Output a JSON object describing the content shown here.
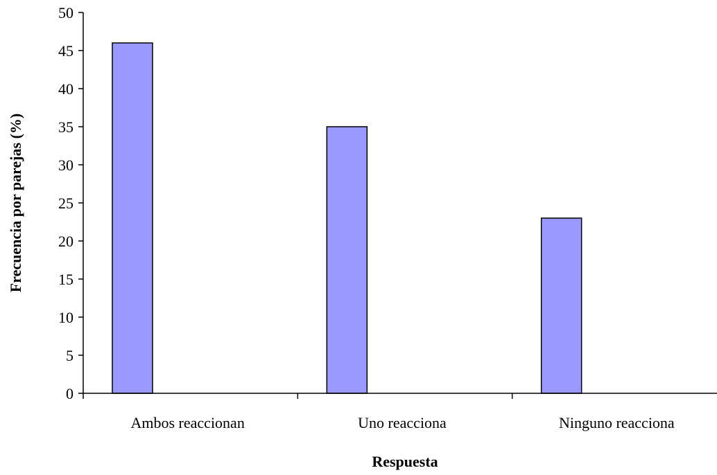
{
  "chart_data": {
    "type": "bar",
    "categories": [
      "Ambos reaccionan",
      "Uno reacciona",
      "Ninguno reacciona"
    ],
    "values": [
      46,
      35,
      23
    ],
    "xlabel": "Respuesta",
    "ylabel": "Frecuencia por parejas (%)",
    "ylim": [
      0,
      50
    ],
    "ytick_step": 5,
    "yticks": [
      "0",
      "5",
      "10",
      "15",
      "20",
      "25",
      "30",
      "35",
      "40",
      "45",
      "50"
    ],
    "grid": false,
    "legend": "none",
    "bar_color": "#9999ff",
    "bar_edge_color": "#000000"
  }
}
